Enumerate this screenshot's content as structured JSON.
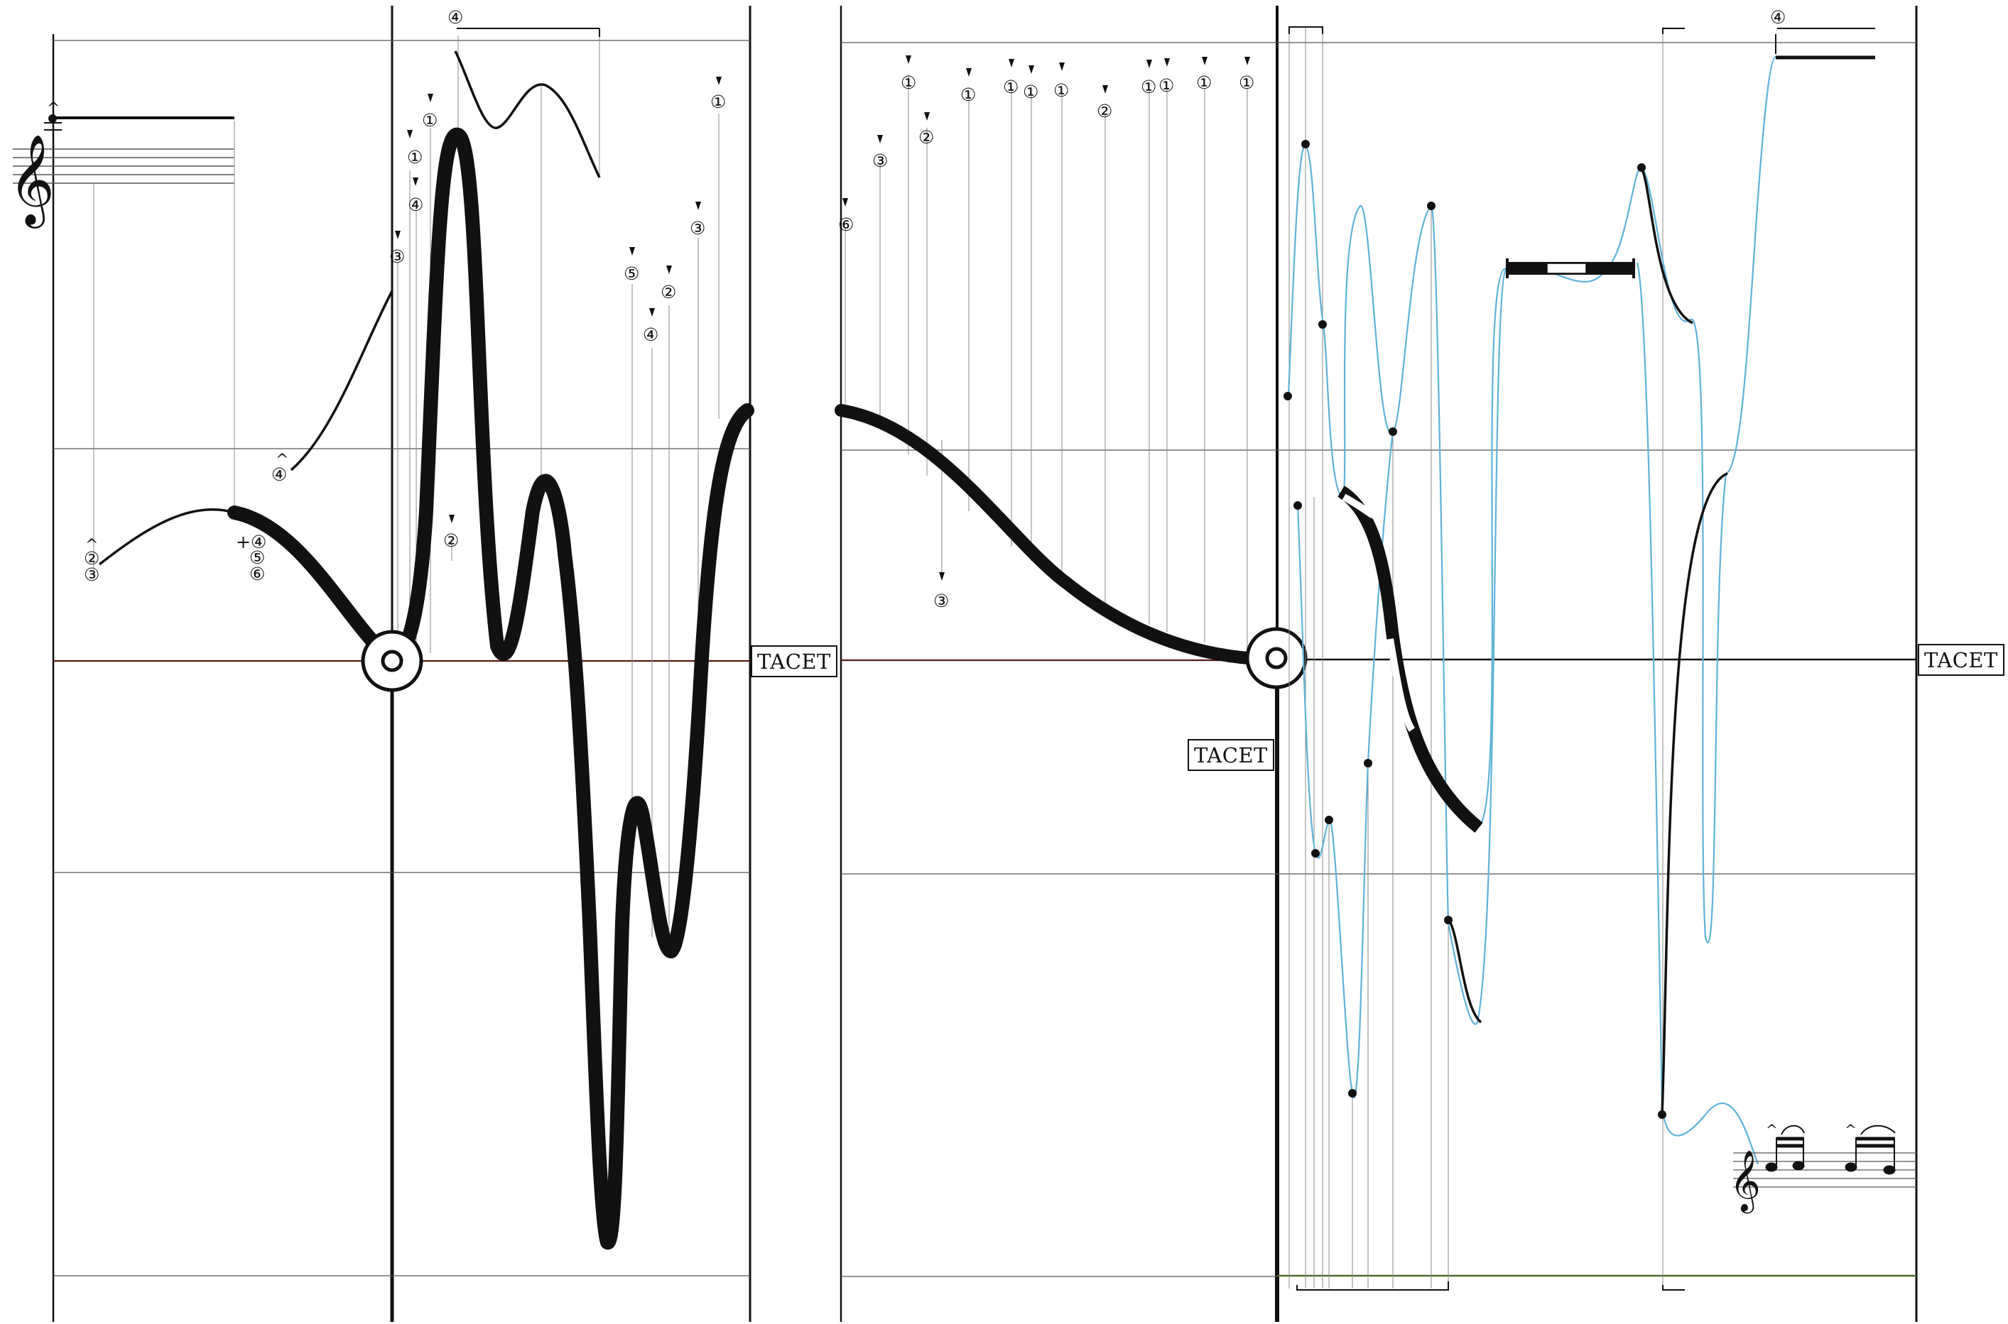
{
  "tacet_labels": [
    "TACET",
    "TACET",
    "TACET"
  ],
  "glyphs": {
    "circled": [
      "①",
      "②",
      "③",
      "④",
      "⑤",
      "⑥"
    ],
    "plus": "+",
    "accent": "^",
    "marker": "▼",
    "treble_clef": "𝄞",
    "dot": "·"
  },
  "colors": {
    "ink": "#111111",
    "ground_line": "#5a1a14",
    "bottom_line_right": "#4e6e2a",
    "blue_curve": "#5fb2d8",
    "staff_gray": "#555555",
    "thin_gray": "#888888"
  },
  "annotations": {
    "left_start_stack": [
      "^",
      "②",
      "③"
    ],
    "left_plus_stack": [
      "+④",
      "⑤",
      "⑥"
    ],
    "left_mid_marker": [
      "^",
      "④"
    ],
    "top_left_marker": "④",
    "top_right_marker": "④"
  }
}
